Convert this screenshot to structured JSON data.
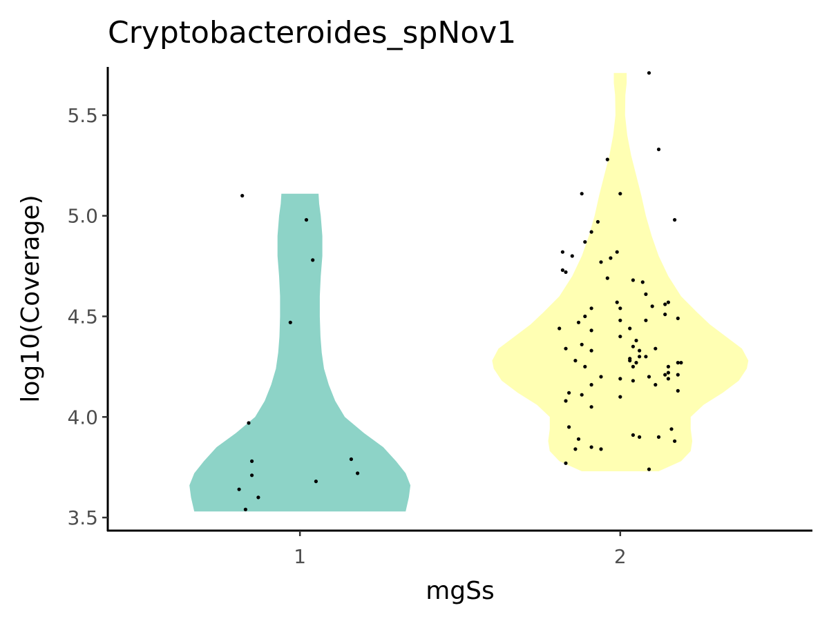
{
  "chart_data": {
    "type": "violin",
    "title": "Cryptobacteroides_spNov1",
    "xlabel": "mgSs",
    "ylabel": "log10(Coverage)",
    "categories": [
      "1",
      "2"
    ],
    "xlim": [
      0.4,
      2.6
    ],
    "ylim": [
      3.435,
      5.74
    ],
    "y_ticks": [
      3.5,
      4.0,
      4.5,
      5.0,
      5.5
    ],
    "y_tick_labels": [
      "3.5",
      "4.0",
      "4.5",
      "5.0",
      "5.5"
    ],
    "grid": false,
    "legend": "none",
    "series": [
      {
        "category": "1",
        "color": "#8dd3c7",
        "range": [
          3.53,
          5.11
        ],
        "density_profile": [
          [
            3.53,
            0.33
          ],
          [
            3.6,
            0.34
          ],
          [
            3.66,
            0.345
          ],
          [
            3.72,
            0.33
          ],
          [
            3.78,
            0.3
          ],
          [
            3.85,
            0.26
          ],
          [
            3.92,
            0.2
          ],
          [
            4.0,
            0.14
          ],
          [
            4.08,
            0.11
          ],
          [
            4.16,
            0.09
          ],
          [
            4.24,
            0.075
          ],
          [
            4.32,
            0.068
          ],
          [
            4.4,
            0.064
          ],
          [
            4.5,
            0.062
          ],
          [
            4.6,
            0.062
          ],
          [
            4.7,
            0.065
          ],
          [
            4.8,
            0.07
          ],
          [
            4.9,
            0.07
          ],
          [
            5.0,
            0.065
          ],
          [
            5.06,
            0.06
          ],
          [
            5.11,
            0.058
          ]
        ],
        "points": [
          [
            0.82,
            5.1
          ],
          [
            1.02,
            4.98
          ],
          [
            1.04,
            4.78
          ],
          [
            0.97,
            4.47
          ],
          [
            0.84,
            3.97
          ],
          [
            1.16,
            3.79
          ],
          [
            0.85,
            3.78
          ],
          [
            1.18,
            3.72
          ],
          [
            0.85,
            3.71
          ],
          [
            1.05,
            3.68
          ],
          [
            0.81,
            3.64
          ],
          [
            0.87,
            3.6
          ],
          [
            0.83,
            3.54
          ]
        ]
      },
      {
        "category": "2",
        "color": "#ffffb3",
        "range": [
          3.73,
          5.71
        ],
        "density_profile": [
          [
            3.73,
            0.12
          ],
          [
            3.78,
            0.19
          ],
          [
            3.83,
            0.22
          ],
          [
            3.88,
            0.225
          ],
          [
            3.94,
            0.22
          ],
          [
            4.0,
            0.22
          ],
          [
            4.06,
            0.26
          ],
          [
            4.12,
            0.32
          ],
          [
            4.18,
            0.37
          ],
          [
            4.24,
            0.395
          ],
          [
            4.28,
            0.4
          ],
          [
            4.34,
            0.38
          ],
          [
            4.4,
            0.33
          ],
          [
            4.46,
            0.28
          ],
          [
            4.52,
            0.24
          ],
          [
            4.6,
            0.19
          ],
          [
            4.7,
            0.15
          ],
          [
            4.8,
            0.12
          ],
          [
            4.9,
            0.098
          ],
          [
            5.0,
            0.08
          ],
          [
            5.1,
            0.066
          ],
          [
            5.2,
            0.05
          ],
          [
            5.3,
            0.034
          ],
          [
            5.4,
            0.022
          ],
          [
            5.5,
            0.015
          ],
          [
            5.6,
            0.016
          ],
          [
            5.66,
            0.02
          ],
          [
            5.71,
            0.02
          ]
        ],
        "points": [
          [
            2.09,
            5.71
          ],
          [
            2.12,
            5.33
          ],
          [
            1.96,
            5.28
          ],
          [
            1.88,
            5.11
          ],
          [
            2.0,
            5.11
          ],
          [
            2.17,
            4.98
          ],
          [
            1.93,
            4.97
          ],
          [
            1.91,
            4.92
          ],
          [
            1.89,
            4.87
          ],
          [
            1.82,
            4.82
          ],
          [
            1.99,
            4.82
          ],
          [
            1.85,
            4.8
          ],
          [
            1.97,
            4.79
          ],
          [
            1.94,
            4.77
          ],
          [
            1.82,
            4.73
          ],
          [
            1.83,
            4.72
          ],
          [
            1.96,
            4.69
          ],
          [
            2.04,
            4.68
          ],
          [
            2.07,
            4.67
          ],
          [
            2.08,
            4.61
          ],
          [
            2.15,
            4.57
          ],
          [
            1.99,
            4.57
          ],
          [
            2.14,
            4.56
          ],
          [
            2.1,
            4.55
          ],
          [
            1.91,
            4.54
          ],
          [
            2.0,
            4.54
          ],
          [
            2.14,
            4.51
          ],
          [
            1.89,
            4.5
          ],
          [
            2.18,
            4.49
          ],
          [
            2.08,
            4.48
          ],
          [
            2.0,
            4.48
          ],
          [
            1.87,
            4.47
          ],
          [
            2.03,
            4.44
          ],
          [
            1.81,
            4.44
          ],
          [
            1.91,
            4.43
          ],
          [
            2.0,
            4.4
          ],
          [
            2.05,
            4.38
          ],
          [
            1.88,
            4.36
          ],
          [
            2.04,
            4.35
          ],
          [
            1.83,
            4.34
          ],
          [
            2.11,
            4.34
          ],
          [
            2.06,
            4.33
          ],
          [
            1.91,
            4.33
          ],
          [
            2.06,
            4.3
          ],
          [
            2.03,
            4.29
          ],
          [
            2.08,
            4.3
          ],
          [
            2.03,
            4.28
          ],
          [
            1.86,
            4.28
          ],
          [
            2.05,
            4.27
          ],
          [
            2.18,
            4.27
          ],
          [
            2.19,
            4.27
          ],
          [
            1.89,
            4.25
          ],
          [
            2.15,
            4.25
          ],
          [
            2.04,
            4.25
          ],
          [
            2.15,
            4.22
          ],
          [
            2.14,
            4.21
          ],
          [
            2.18,
            4.21
          ],
          [
            1.94,
            4.2
          ],
          [
            2.09,
            4.2
          ],
          [
            2.0,
            4.19
          ],
          [
            2.15,
            4.19
          ],
          [
            2.04,
            4.18
          ],
          [
            2.11,
            4.16
          ],
          [
            1.91,
            4.16
          ],
          [
            2.18,
            4.13
          ],
          [
            1.84,
            4.12
          ],
          [
            1.88,
            4.11
          ],
          [
            2.0,
            4.1
          ],
          [
            1.83,
            4.08
          ],
          [
            1.91,
            4.05
          ],
          [
            1.84,
            3.95
          ],
          [
            2.16,
            3.94
          ],
          [
            2.04,
            3.91
          ],
          [
            2.12,
            3.9
          ],
          [
            2.06,
            3.9
          ],
          [
            1.87,
            3.89
          ],
          [
            2.17,
            3.88
          ],
          [
            1.91,
            3.85
          ],
          [
            1.94,
            3.84
          ],
          [
            1.86,
            3.84
          ],
          [
            1.83,
            3.77
          ],
          [
            2.09,
            3.74
          ]
        ]
      }
    ]
  }
}
